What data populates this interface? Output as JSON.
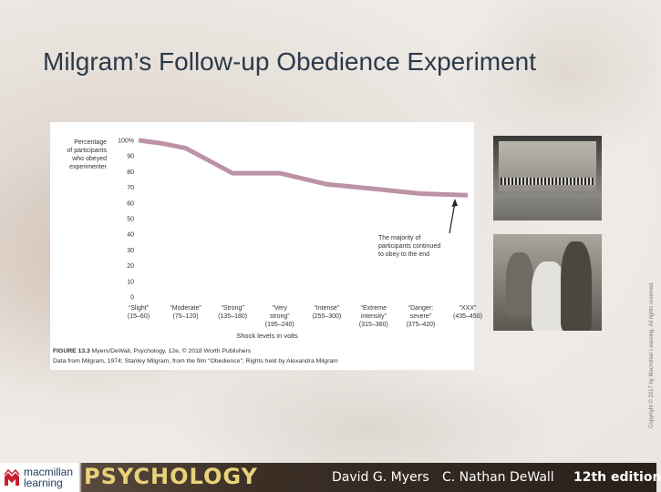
{
  "slide": {
    "title": "Milgram’s Follow-up Obedience Experiment"
  },
  "figure": {
    "caption_line1_bold": "FIGURE 13.3",
    "caption_line1_rest": " Myers/DeWall, Psychology, 12e, © 2018 Worth Publishers",
    "caption_line2": "Data from Milgram, 1974; Stanley Milgram, from the film “Obedience”; Rights held by Alexandra Milgram",
    "annotation": [
      "The majority of",
      "participants continued",
      "to obey to the end"
    ]
  },
  "chart_data": {
    "type": "line",
    "ylabel": [
      "Percentage",
      "of participants",
      "who obeyed",
      "experimenter"
    ],
    "xlabel": "Shock levels in volts",
    "y_ticks": [
      "0",
      "10",
      "20",
      "30",
      "40",
      "50",
      "60",
      "70",
      "80",
      "90",
      "100%"
    ],
    "ylim": [
      0,
      100
    ],
    "categories": [
      [
        "“Slight”",
        "(15–60)"
      ],
      [
        "“Moderate”",
        "(75–120)"
      ],
      [
        "“Strong”",
        "(135–180)"
      ],
      [
        "“Very",
        "strong”",
        "(195–240)"
      ],
      [
        "“Intense”",
        "(255–300)"
      ],
      [
        "“Extreme",
        "intensity”",
        "(315–360)"
      ],
      [
        "“Danger:",
        "severe”",
        "(375–420)"
      ],
      [
        "“XXX”",
        "(435–450)"
      ]
    ],
    "x": [
      0,
      1,
      2,
      3,
      4,
      5,
      6,
      7
    ],
    "values": [
      [
        0,
        100
      ],
      [
        0.5,
        98
      ],
      [
        1,
        95
      ],
      [
        2,
        79
      ],
      [
        3,
        79
      ],
      [
        4,
        72
      ],
      [
        5,
        69
      ],
      [
        6,
        66
      ],
      [
        7,
        65
      ]
    ],
    "line_color": "#bd92a6",
    "grid": false
  },
  "copyright": "Copyright © 2017 by Macmillan Learning. All rights reserved.",
  "footer": {
    "publisher": "macmillan learning",
    "book": "PSYCHOLOGY",
    "author1": "David G. Myers",
    "author2": "C. Nathan DeWall",
    "edition": "12th edition"
  }
}
